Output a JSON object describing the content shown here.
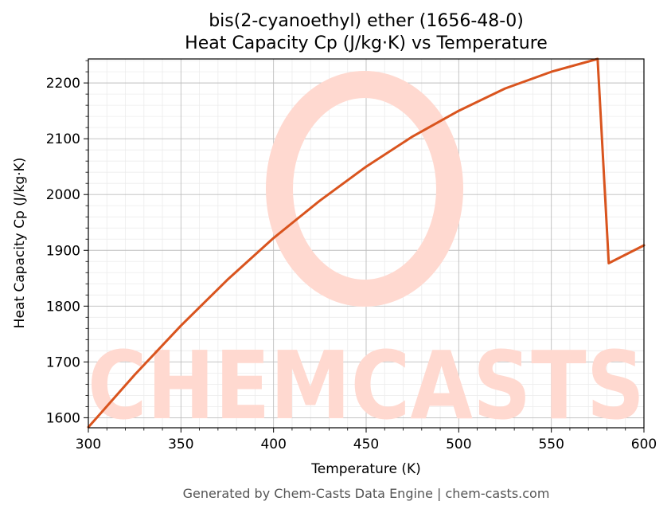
{
  "chart_data": {
    "type": "line",
    "title": "bis(2-cyanoethyl) ether (1656-48-0)",
    "subtitle": "Heat Capacity Cp (J/kg·K) vs Temperature",
    "xlabel": "Temperature (K)",
    "ylabel": "Heat Capacity Cp (J/kg·K)",
    "xlim": [
      300,
      600
    ],
    "ylim": [
      1582,
      2243
    ],
    "x_ticks": [
      300,
      350,
      400,
      450,
      500,
      550,
      600
    ],
    "y_ticks": [
      1600,
      1700,
      1800,
      1900,
      2000,
      2100,
      2200
    ],
    "grid": true,
    "legend": "none",
    "line_color": "#d9541e",
    "series": [
      {
        "x": [
          300,
          325,
          350,
          375,
          400,
          425,
          450,
          475,
          500,
          525,
          550,
          575,
          581,
          600
        ],
        "y": [
          1583,
          1677,
          1765,
          1847,
          1922,
          1989,
          2050,
          2104,
          2150,
          2190,
          2220,
          2243,
          1877,
          1909
        ]
      }
    ]
  },
  "watermark": "CHEMCASTS",
  "footer": "Generated by Chem-Casts Data Engine | chem-casts.com"
}
